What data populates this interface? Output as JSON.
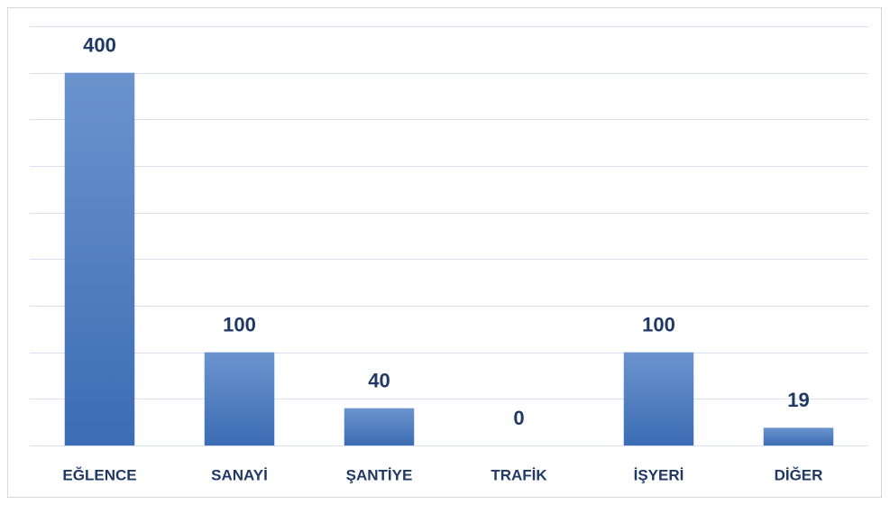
{
  "chart_data": {
    "type": "bar",
    "categories": [
      "EĞLENCE",
      "SANAYİ",
      "ŞANTİYE",
      "TRAFİK",
      "İŞYERİ",
      "DİĞER"
    ],
    "values": [
      400,
      100,
      40,
      0,
      100,
      19
    ],
    "color": "#4a7bc1",
    "ylim": [
      0,
      450
    ],
    "yticks": [
      0,
      50,
      100,
      150,
      200,
      250,
      300,
      350,
      400,
      450
    ],
    "grid": true
  }
}
